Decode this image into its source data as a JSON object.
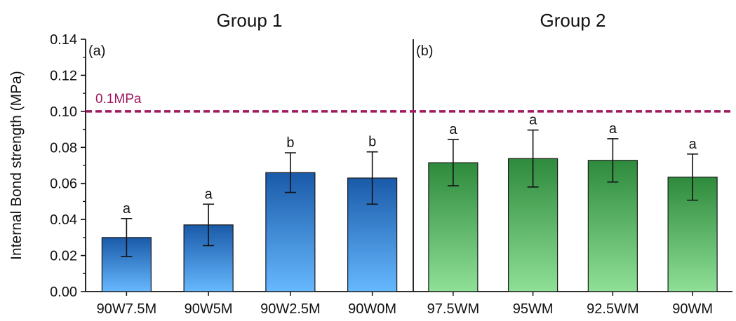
{
  "chart_data": {
    "type": "bar",
    "ylabel": "Internal Bond strength (MPa)",
    "ylim": [
      0,
      0.14
    ],
    "yticks": [
      "0.00",
      "0.02",
      "0.04",
      "0.06",
      "0.08",
      "0.10",
      "0.12",
      "0.14"
    ],
    "reference_line": {
      "value": 0.1,
      "label": "0.1MPa",
      "color": "#a0185e"
    },
    "groups": [
      {
        "title": "Group 1",
        "panel": "(a)",
        "color_top": "#1a5aa8",
        "color_bottom": "#66b8ff",
        "categories": [
          "90W7.5M",
          "90W5M",
          "90W2.5M",
          "90W0M"
        ],
        "values": [
          0.03,
          0.037,
          0.066,
          0.063
        ],
        "errors": [
          0.0105,
          0.0115,
          0.011,
          0.0145
        ],
        "significance": [
          "a",
          "a",
          "b",
          "b"
        ]
      },
      {
        "title": "Group 2",
        "panel": "(b)",
        "color_top": "#2e8a3c",
        "color_bottom": "#8fe096",
        "categories": [
          "97.5WM",
          "95WM",
          "92.5WM",
          "90WM"
        ],
        "values": [
          0.0715,
          0.0738,
          0.0728,
          0.0635
        ],
        "errors": [
          0.0128,
          0.0158,
          0.012,
          0.0128
        ],
        "significance": [
          "a",
          "a",
          "a",
          "a"
        ]
      }
    ]
  }
}
